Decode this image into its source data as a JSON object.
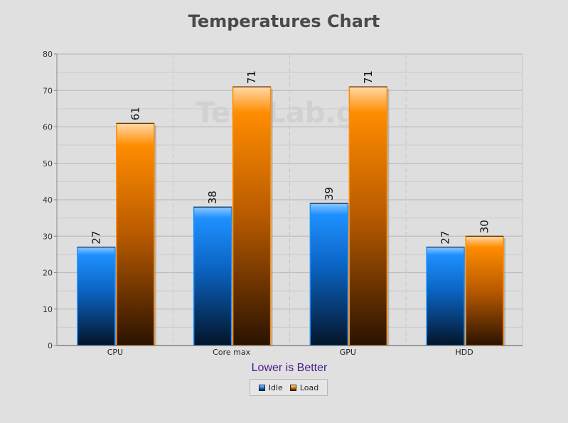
{
  "chart_data": {
    "type": "bar",
    "title": "Temperatures Chart",
    "xlabel": "Lower is Better",
    "ylabel": "",
    "ylim": [
      0,
      80
    ],
    "yticks": [
      0,
      10,
      20,
      30,
      40,
      50,
      60,
      70,
      80
    ],
    "categories": [
      "CPU",
      "Core max",
      "GPU",
      "HDD"
    ],
    "series": [
      {
        "name": "Idle",
        "values": [
          27,
          38,
          39,
          27
        ],
        "color": "#1e90ff"
      },
      {
        "name": "Load",
        "values": [
          61,
          71,
          71,
          30
        ],
        "color": "#ff8c00"
      }
    ],
    "grid": true,
    "legend": "bottom-center",
    "watermark": "TechLab.gr",
    "xlabel_color": "#4b1a8c"
  }
}
